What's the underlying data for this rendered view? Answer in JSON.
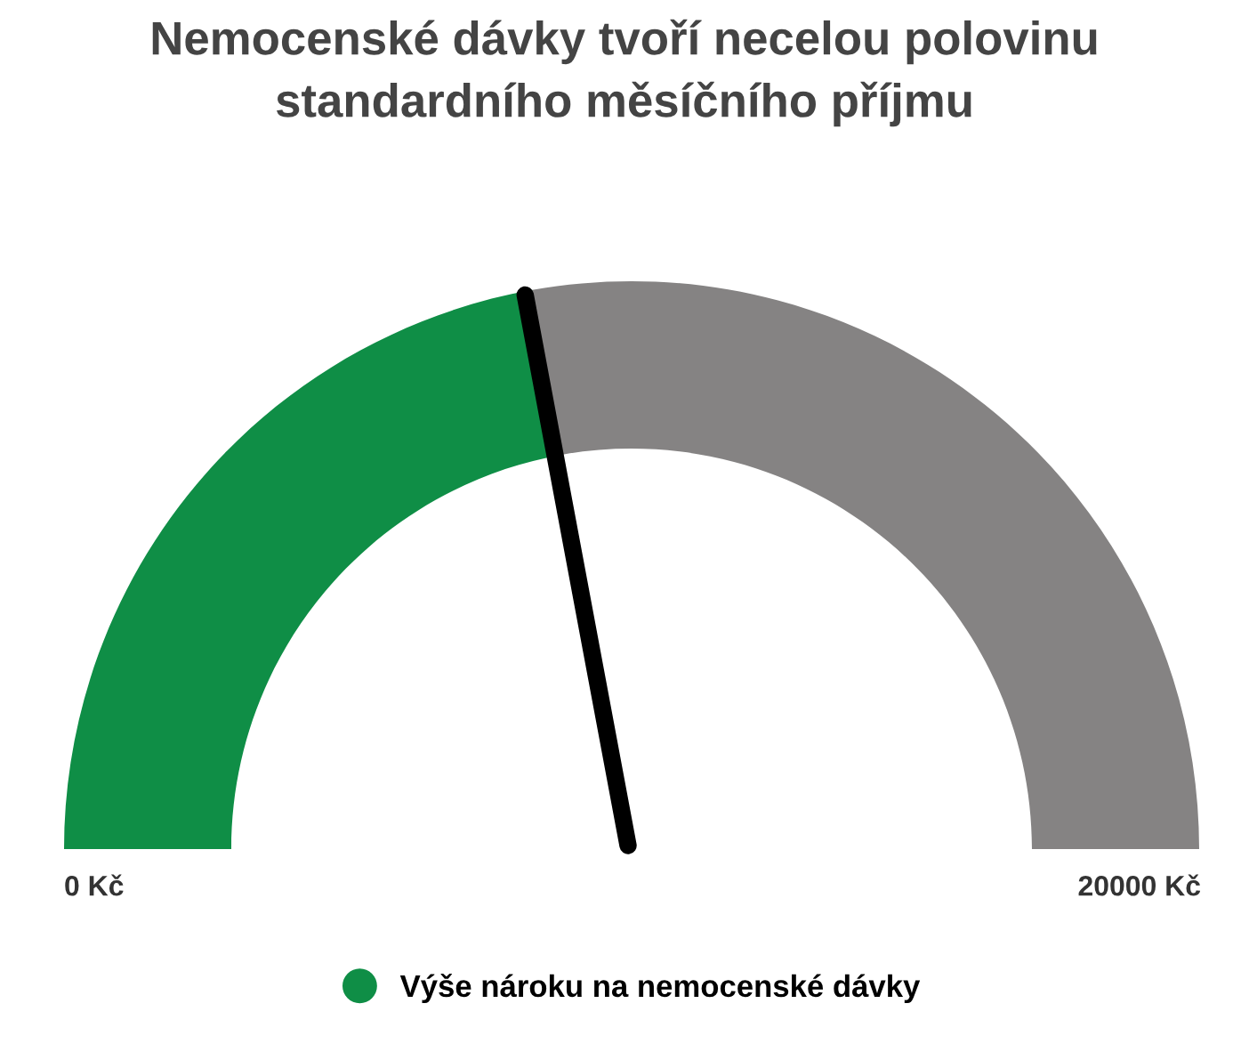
{
  "chart_data": {
    "type": "donut",
    "title": "Nemocenské dávky tvoří necelou polovinu\nstandardního měsíčního příjmu",
    "categories": [
      "Výše nároku na nemocenské dávky",
      null
    ],
    "values": [
      44.4,
      55.6
    ],
    "colors": [
      "#0f8e46",
      "#858383"
    ],
    "needle": "Výše nároku na nemocenské dávky",
    "annotations": [
      "0 Kč",
      "20000 Kč"
    ],
    "legend": "bottom"
  }
}
